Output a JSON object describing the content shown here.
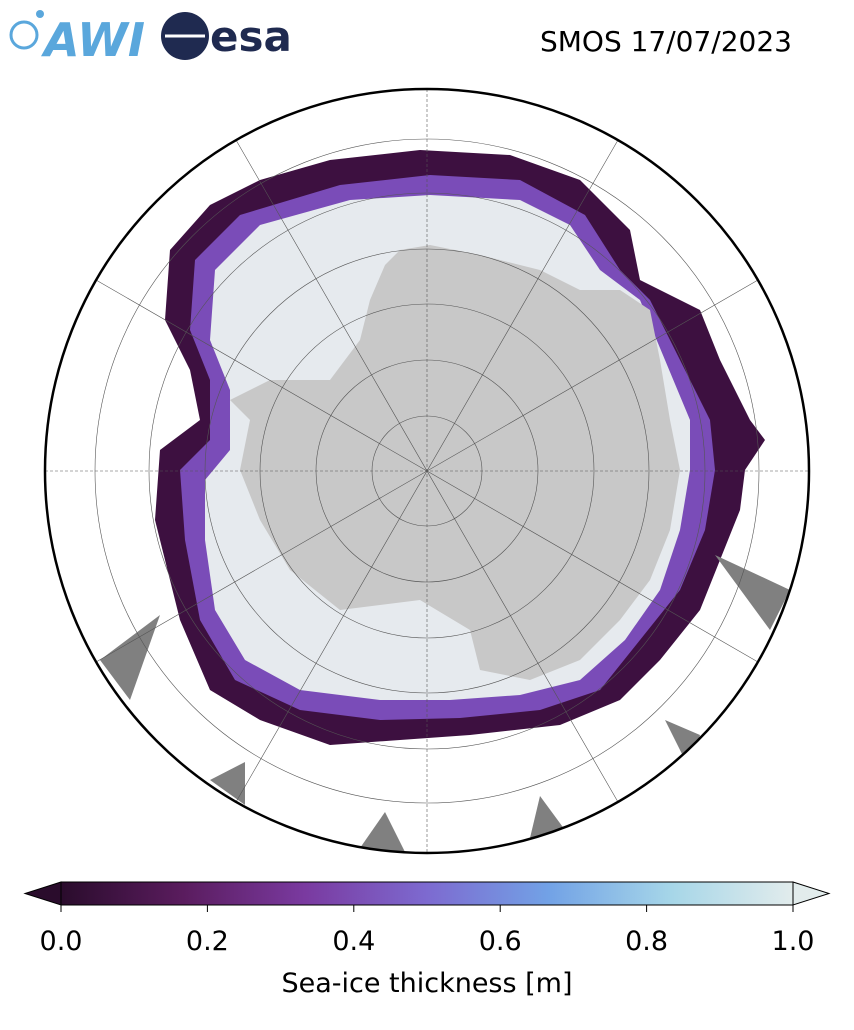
{
  "header": {
    "logos": [
      "AWI",
      "esa"
    ],
    "title": "SMOS 17/07/2023"
  },
  "colorbar": {
    "label": "Sea-ice thickness [m]",
    "lim": [
      0,
      1
    ],
    "ticks": [
      {
        "value": 0,
        "label": "0.0"
      },
      {
        "value": 0.2,
        "label": "0.2"
      },
      {
        "value": 0.4,
        "label": "0.4"
      },
      {
        "value": 0.6,
        "label": "0.6"
      },
      {
        "value": 0.8,
        "label": "0.8"
      },
      {
        "value": 1,
        "label": "1.0"
      }
    ],
    "colors": [
      "#2a0c2c",
      "#5a1c5e",
      "#7a3aa0",
      "#7d6ad0",
      "#72a2e6",
      "#a6d6e8",
      "#e2ecec"
    ]
  }
}
